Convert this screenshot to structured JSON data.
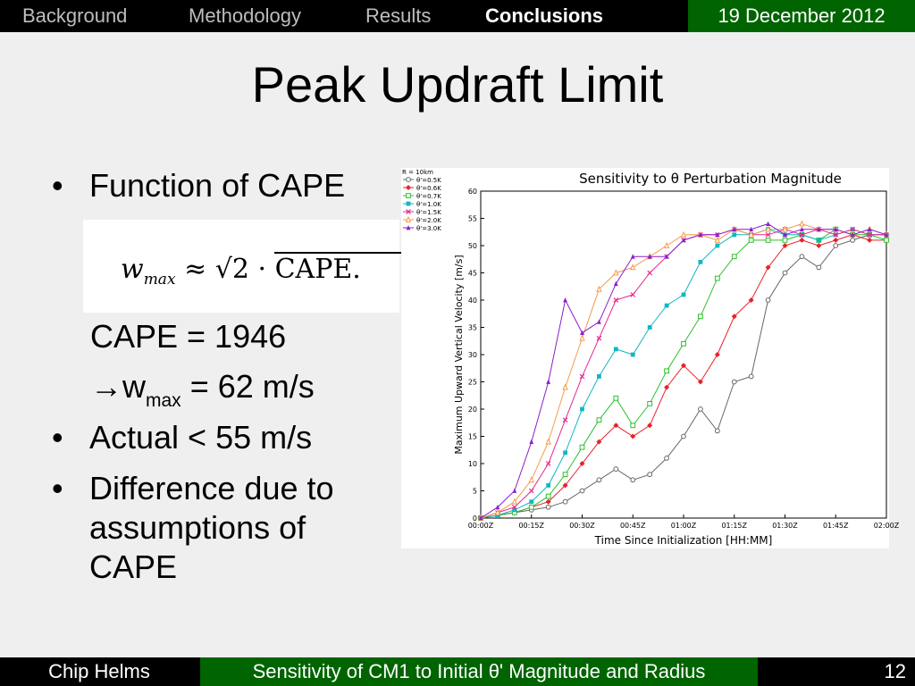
{
  "nav": {
    "items": [
      "Background",
      "Methodology",
      "Results",
      "Conclusions"
    ],
    "active": "Conclusions",
    "date": "19 December 2012"
  },
  "slide": {
    "title": "Peak Updraft Limit",
    "bullet1": "Function of CAPE",
    "formula": {
      "w": "w",
      "sub": "max",
      "approx": "≈",
      "root": "√",
      "body": "2 · CAPE."
    },
    "cape_line": "CAPE = 1946",
    "wmax_arrow": "→",
    "wmax_w": "w",
    "wmax_sub": "max",
    "wmax_val": " = 62 m/s",
    "bullet2": "Actual < 55 m/s",
    "bullet3_line1": "Difference due to",
    "bullet3_line2": "assumptions of",
    "bullet3_line3": "CAPE"
  },
  "footer": {
    "author": "Chip Helms",
    "title": "Sensitivity of CM1 to Initial θ' Magnitude and Radius",
    "page": "12"
  },
  "chart_data": {
    "type": "line",
    "title": "Sensitivity to θ Perturbation Magnitude",
    "xlabel": "Time Since Initialization [HH:MM]",
    "ylabel": "Maximum Upward Vertical Velocity [m/s]",
    "legend_title": "R = 10km",
    "legend_position": "top-left outside",
    "xlim": [
      0,
      120
    ],
    "ylim": [
      0,
      60
    ],
    "xticks": [
      "00:00Z",
      "00:15Z",
      "00:30Z",
      "00:45Z",
      "01:00Z",
      "01:15Z",
      "01:30Z",
      "01:45Z",
      "02:00Z"
    ],
    "yticks": [
      0,
      5,
      10,
      15,
      20,
      25,
      30,
      35,
      40,
      45,
      50,
      55,
      60
    ],
    "grid": false,
    "series": [
      {
        "name": "θ'=0.5K",
        "color": "#666666",
        "marker": "circle",
        "x": [
          0,
          5,
          10,
          15,
          20,
          25,
          30,
          35,
          40,
          45,
          50,
          55,
          60,
          65,
          70,
          75,
          80,
          85,
          90,
          95,
          100,
          105,
          110,
          115,
          120
        ],
        "y": [
          0,
          0.5,
          1,
          1.5,
          2,
          3,
          5,
          7,
          9,
          7,
          8,
          11,
          15,
          20,
          16,
          25,
          26,
          40,
          45,
          48,
          46,
          50,
          51,
          52,
          52
        ]
      },
      {
        "name": "θ'=0.6K",
        "color": "#e8212a",
        "marker": "diamond",
        "x": [
          0,
          5,
          10,
          15,
          20,
          25,
          30,
          35,
          40,
          45,
          50,
          55,
          60,
          65,
          70,
          75,
          80,
          85,
          90,
          95,
          100,
          105,
          110,
          115,
          120
        ],
        "y": [
          0,
          0.5,
          1,
          2,
          3,
          6,
          10,
          14,
          17,
          15,
          17,
          24,
          28,
          25,
          30,
          37,
          40,
          46,
          50,
          51,
          50,
          51,
          52,
          51,
          51
        ]
      },
      {
        "name": "θ'=0.7K",
        "color": "#2ec02e",
        "marker": "square",
        "x": [
          0,
          5,
          10,
          15,
          20,
          25,
          30,
          35,
          40,
          45,
          50,
          55,
          60,
          65,
          70,
          75,
          80,
          85,
          90,
          95,
          100,
          105,
          110,
          115,
          120
        ],
        "y": [
          0,
          0.5,
          1,
          2,
          4,
          8,
          13,
          18,
          22,
          17,
          21,
          27,
          32,
          37,
          44,
          48,
          51,
          51,
          51,
          52,
          51,
          53,
          52,
          52,
          51
        ]
      },
      {
        "name": "θ'=1.0K",
        "color": "#10b7c2",
        "marker": "filled-square",
        "x": [
          0,
          5,
          10,
          15,
          20,
          25,
          30,
          35,
          40,
          45,
          50,
          55,
          60,
          65,
          70,
          75,
          80,
          85,
          90,
          95,
          100,
          105,
          110,
          115,
          120
        ],
        "y": [
          0,
          0.5,
          1.5,
          3,
          6,
          12,
          20,
          26,
          31,
          30,
          35,
          39,
          41,
          47,
          50,
          52,
          52,
          53,
          52,
          52,
          51,
          52,
          53,
          52,
          52
        ]
      },
      {
        "name": "θ'=1.5K",
        "color": "#e8278f",
        "marker": "x",
        "x": [
          0,
          5,
          10,
          15,
          20,
          25,
          30,
          35,
          40,
          45,
          50,
          55,
          60,
          65,
          70,
          75,
          80,
          85,
          90,
          95,
          100,
          105,
          110,
          115,
          120
        ],
        "y": [
          0,
          1,
          2,
          5,
          10,
          18,
          26,
          33,
          40,
          41,
          45,
          48,
          51,
          52,
          52,
          53,
          52,
          52,
          53,
          52,
          53,
          52,
          53,
          52,
          52
        ]
      },
      {
        "name": "θ'=2.0K",
        "color": "#f49b48",
        "marker": "triangle",
        "x": [
          0,
          5,
          10,
          15,
          20,
          25,
          30,
          35,
          40,
          45,
          50,
          55,
          60,
          65,
          70,
          75,
          80,
          85,
          90,
          95,
          100,
          105,
          110,
          115,
          120
        ],
        "y": [
          0,
          1,
          3,
          7,
          14,
          24,
          33,
          42,
          45,
          46,
          48,
          50,
          52,
          52,
          51,
          53,
          52,
          53,
          53,
          54,
          53,
          53,
          52,
          53,
          52
        ]
      },
      {
        "name": "θ'=3.0K",
        "color": "#8b1fc9",
        "marker": "filled-triangle",
        "x": [
          0,
          5,
          10,
          15,
          20,
          25,
          30,
          35,
          40,
          45,
          50,
          55,
          60,
          65,
          70,
          75,
          80,
          85,
          90,
          95,
          100,
          105,
          110,
          115,
          120
        ],
        "y": [
          0,
          2,
          5,
          14,
          25,
          40,
          34,
          36,
          43,
          48,
          48,
          48,
          51,
          52,
          52,
          53,
          53,
          54,
          52,
          53,
          53,
          53,
          52,
          53,
          52
        ]
      }
    ]
  }
}
